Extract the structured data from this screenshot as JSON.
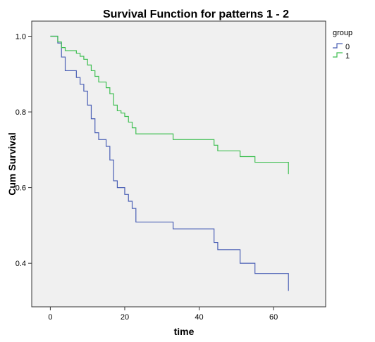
{
  "chart_data": {
    "type": "line",
    "step": true,
    "title": "Survival Function for patterns 1 - 2",
    "xlabel": "time",
    "ylabel": "Cum Survival",
    "xlim": [
      -5,
      74
    ],
    "ylim": [
      0.285,
      1.04
    ],
    "xticks": [
      0,
      20,
      40,
      60
    ],
    "yticks": [
      0.4,
      0.6,
      0.8,
      1.0
    ],
    "ytick_labels": [
      "0.4",
      "0.6",
      "0.8",
      "1.0"
    ],
    "grid": false,
    "background": "#f0f0f0",
    "legend": {
      "title": "group",
      "position": "top-right"
    },
    "series": [
      {
        "name": "0",
        "color": "#4a5fb5",
        "x": [
          0,
          2,
          3,
          4,
          7,
          8,
          9,
          10,
          11,
          12,
          13,
          15,
          16,
          17,
          18,
          20,
          21,
          22,
          23,
          33,
          44,
          45,
          51,
          55,
          64
        ],
        "y": [
          1.0,
          0.982,
          0.945,
          0.909,
          0.891,
          0.873,
          0.855,
          0.818,
          0.782,
          0.745,
          0.727,
          0.709,
          0.673,
          0.618,
          0.6,
          0.582,
          0.564,
          0.545,
          0.509,
          0.491,
          0.455,
          0.436,
          0.4,
          0.373,
          0.327
        ]
      },
      {
        "name": "1",
        "color": "#3fbf52",
        "x": [
          0,
          2,
          3,
          4,
          7,
          8,
          9,
          10,
          11,
          12,
          13,
          15,
          16,
          17,
          18,
          19,
          20,
          21,
          22,
          23,
          33,
          44,
          45,
          51,
          55,
          64
        ],
        "y": [
          1.0,
          0.985,
          0.97,
          0.962,
          0.955,
          0.947,
          0.939,
          0.924,
          0.909,
          0.894,
          0.879,
          0.864,
          0.848,
          0.818,
          0.803,
          0.797,
          0.788,
          0.773,
          0.758,
          0.742,
          0.727,
          0.712,
          0.697,
          0.682,
          0.667,
          0.636
        ]
      }
    ]
  }
}
